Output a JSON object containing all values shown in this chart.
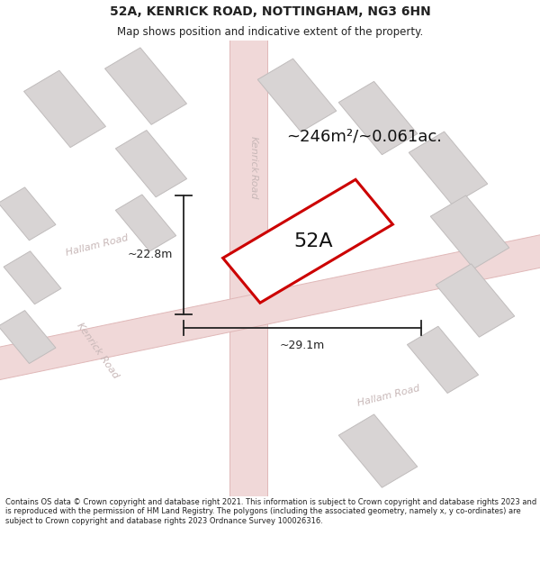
{
  "title_line1": "52A, KENRICK ROAD, NOTTINGHAM, NG3 6HN",
  "title_line2": "Map shows position and indicative extent of the property.",
  "footer": "Contains OS data © Crown copyright and database right 2021. This information is subject to Crown copyright and database rights 2023 and is reproduced with the permission of HM Land Registry. The polygons (including the associated geometry, namely x, y co-ordinates) are subject to Crown copyright and database rights 2023 Ordnance Survey 100026316.",
  "area_label": "~246m²/~0.061ac.",
  "width_label": "~29.1m",
  "height_label": "~22.8m",
  "property_label": "52A",
  "map_bg": "#f2eeee",
  "road_fill": "#f0d8d8",
  "road_edge": "#e0b8b8",
  "building_fill": "#d8d4d4",
  "building_edge": "#c0bcbc",
  "property_fill": "#ffffff",
  "property_edge": "#cc0000",
  "road_label_color": "#c8b8b8",
  "dim_color": "#222222",
  "title_color": "#222222",
  "footer_color": "#222222",
  "title_fontsize": 10,
  "subtitle_fontsize": 8.5,
  "footer_fontsize": 6.0,
  "area_fontsize": 13,
  "dim_fontsize": 9,
  "property_fontsize": 16,
  "road_label_fontsize": 8
}
